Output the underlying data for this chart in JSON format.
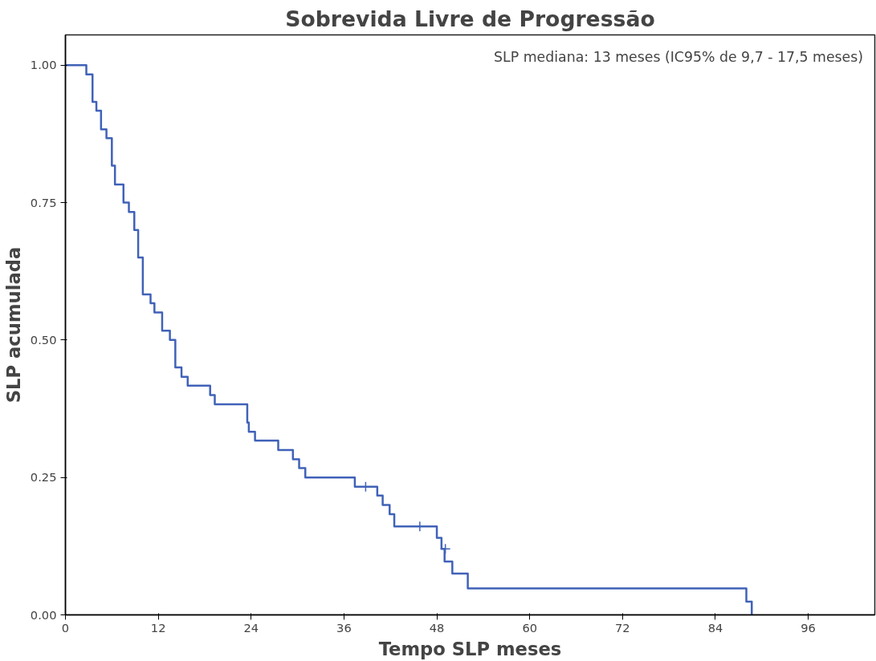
{
  "chart_data": {
    "type": "step",
    "title": "Sobrevida Livre de Progressão",
    "xlabel": "Tempo SLP meses",
    "ylabel": "SLP acumulada",
    "annotations": [
      "SLP mediana: 13 meses (IC95% de 9,7 - 17,5 meses)"
    ],
    "xlim": [
      0,
      104.6
    ],
    "ylim": [
      0,
      1.055
    ],
    "xticks": [
      0,
      12,
      24,
      36,
      48,
      60,
      72,
      84,
      96
    ],
    "yticks": [
      {
        "value": 0,
        "label": "0.00"
      },
      {
        "value": 0.25,
        "label": "0.25"
      },
      {
        "value": 0.5,
        "label": "0.50"
      },
      {
        "value": 0.75,
        "label": "0.75"
      },
      {
        "value": 1,
        "label": "1.00"
      }
    ],
    "grid": false,
    "series": [
      {
        "color": "#4062b8",
        "marker": "none",
        "x": [
          0,
          2.7,
          3.5,
          4.0,
          4.6,
          5.3,
          6.0,
          6.4,
          7.5,
          8.2,
          8.9,
          9.4,
          10,
          11,
          11.5,
          12.5,
          13.5,
          14.2,
          15,
          15.8,
          18.7,
          19.3,
          23.5,
          23.7,
          24.5,
          27.5,
          29.4,
          30.2,
          31,
          37.4,
          40.3,
          41,
          41.9,
          42.5,
          48,
          48.6,
          49,
          50,
          52,
          88,
          88.7
        ],
        "values": [
          1.0,
          0.983,
          0.933,
          0.917,
          0.883,
          0.867,
          0.817,
          0.783,
          0.75,
          0.733,
          0.7,
          0.65,
          0.583,
          0.567,
          0.55,
          0.517,
          0.5,
          0.45,
          0.433,
          0.417,
          0.4,
          0.383,
          0.35,
          0.333,
          0.317,
          0.3,
          0.283,
          0.267,
          0.25,
          0.233,
          0.217,
          0.2,
          0.183,
          0.161,
          0.14,
          0.12,
          0.097,
          0.075,
          0.048,
          0.024,
          0.0
        ]
      },
      {
        "type": "scatter",
        "color": "#4062b8",
        "marker": "cross",
        "x": [
          38.8,
          45.8,
          49.1
        ],
        "values": [
          0.233,
          0.161,
          0.12
        ]
      }
    ]
  }
}
